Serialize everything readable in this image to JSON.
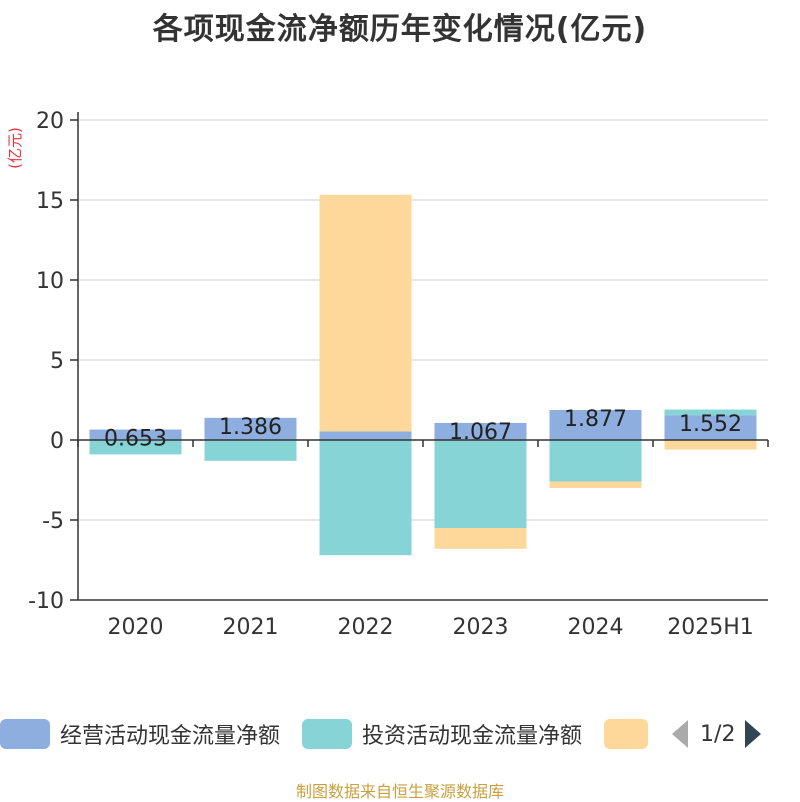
{
  "title": "各项现金流净额历年变化情况(亿元)",
  "source": "制图数据来自恒生聚源数据库",
  "chart_data": {
    "type": "bar",
    "stacked": true,
    "unit_label": "(亿元)",
    "categories": [
      "2020",
      "2021",
      "2022",
      "2023",
      "2024",
      "2025H1"
    ],
    "ylim": [
      -10,
      20
    ],
    "yticks": [
      -10,
      -5,
      0,
      5,
      10,
      15,
      20
    ],
    "grid": true,
    "legend_position": "bottom",
    "series": [
      {
        "name": "经营活动现金流量净额",
        "color": "#8eaedf",
        "values": [
          0.653,
          1.386,
          0.53,
          1.067,
          1.877,
          1.552
        ],
        "labels": [
          "0.653",
          "1.386",
          "",
          "1.067",
          "1.877",
          "1.552"
        ]
      },
      {
        "name": "投资活动现金流量净额",
        "color": "#86d4d6",
        "values": [
          -0.9,
          -1.3,
          -7.2,
          -5.5,
          -2.6,
          0.35
        ]
      },
      {
        "name": "",
        "color": "#fdd89a",
        "values": [
          0,
          0,
          14.8,
          -1.3,
          -0.4,
          -0.6
        ]
      }
    ]
  },
  "legend": {
    "page": "1/2"
  }
}
